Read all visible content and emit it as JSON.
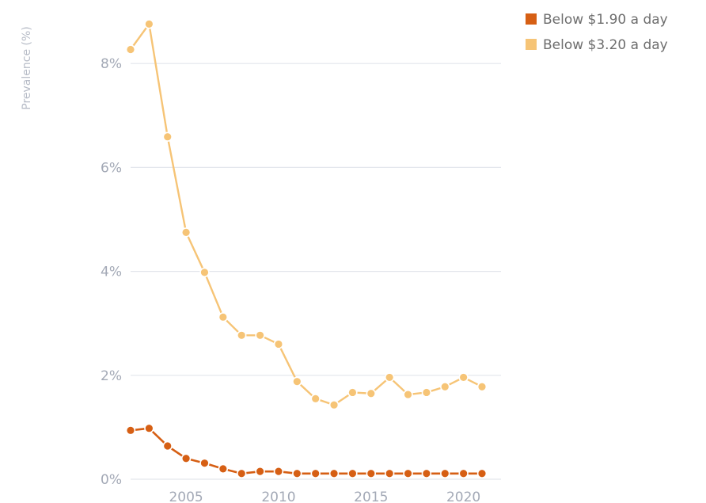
{
  "chart_data": {
    "type": "line",
    "title": "",
    "xlabel": "",
    "ylabel": "Prevalence (%)",
    "xlim": [
      2002,
      2021
    ],
    "ylim": [
      0,
      8.6
    ],
    "grid": true,
    "legend": "top-right",
    "x_ticks": [
      2005,
      2010,
      2015,
      2020
    ],
    "x_tick_labels": [
      "2005",
      "2010",
      "2015",
      "2020"
    ],
    "y_ticks": [
      0,
      2,
      4,
      6,
      8
    ],
    "y_tick_labels": [
      "0%",
      "2%",
      "4%",
      "6%",
      "8%"
    ],
    "x": [
      2002,
      2003,
      2004,
      2005,
      2006,
      2007,
      2008,
      2009,
      2010,
      2011,
      2012,
      2013,
      2014,
      2015,
      2016,
      2017,
      2018,
      2019,
      2020,
      2021
    ],
    "series": [
      {
        "name": "Below $1.90 a day",
        "color": "#d65f14",
        "values": [
          0.94,
          0.98,
          0.64,
          0.4,
          0.31,
          0.2,
          0.11,
          0.15,
          0.15,
          0.11,
          0.11,
          0.11,
          0.11,
          0.11,
          0.11,
          0.11,
          0.11,
          0.11,
          0.11,
          0.11
        ]
      },
      {
        "name": "Below $3.20 a day",
        "color": "#f6c476",
        "values": [
          8.27,
          8.76,
          6.59,
          4.75,
          3.98,
          3.12,
          2.77,
          2.77,
          2.6,
          1.88,
          1.55,
          1.43,
          1.67,
          1.65,
          1.96,
          1.63,
          1.67,
          1.78,
          1.96,
          1.78
        ]
      }
    ]
  }
}
